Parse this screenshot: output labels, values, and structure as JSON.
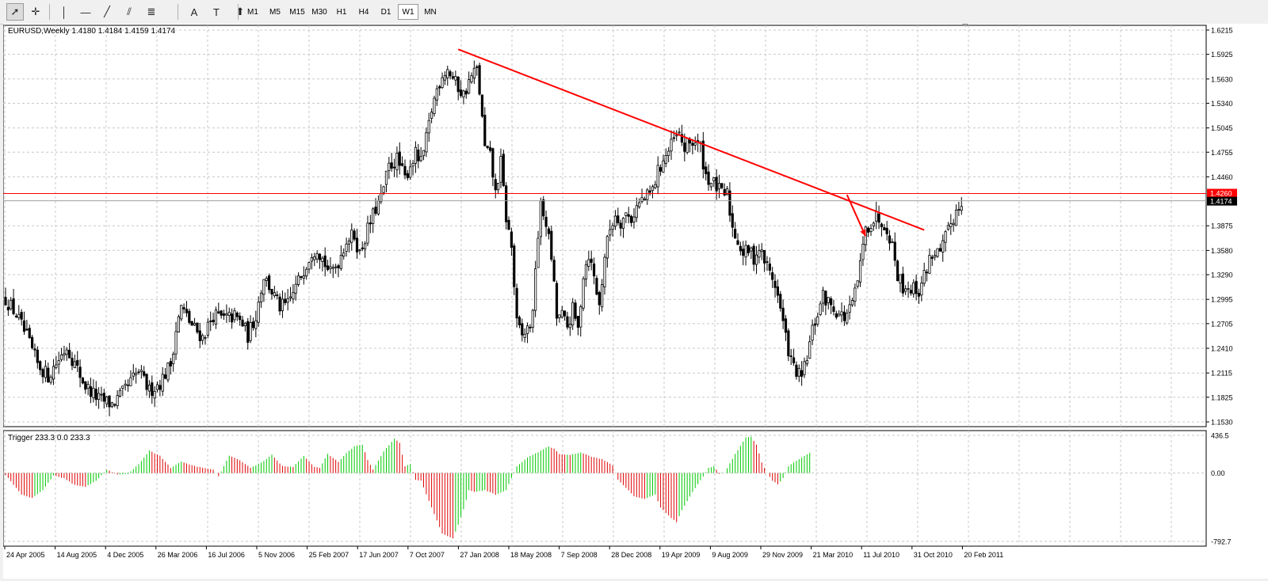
{
  "toolbar": {
    "tools": [
      {
        "name": "cursor-tool",
        "glyph": "➚"
      },
      {
        "name": "crosshair-tool",
        "glyph": "✛"
      },
      {
        "name": "vertical-line-tool",
        "glyph": "│"
      },
      {
        "name": "horizontal-line-tool",
        "glyph": "—"
      },
      {
        "name": "trendline-tool",
        "glyph": "╱"
      },
      {
        "name": "equidistant-channel-tool",
        "glyph": "⫽"
      },
      {
        "name": "fibonacci-tool",
        "glyph": "≣"
      },
      {
        "name": "text-tool",
        "glyph": "A"
      },
      {
        "name": "text-label-tool",
        "glyph": "T"
      },
      {
        "name": "arrows-tool",
        "glyph": "⬆"
      }
    ],
    "timeframes": [
      "M1",
      "M5",
      "M15",
      "M30",
      "H1",
      "H4",
      "D1",
      "W1",
      "MN"
    ],
    "active_timeframe": "W1"
  },
  "chart_data": {
    "type": "candlestick",
    "symbol_header": "EURUSD,Weekly  1.4180 1.4184 1.4159 1.4174",
    "price_axis": {
      "ylim": [
        1.153,
        1.6215
      ],
      "ticks": [
        "1.6215",
        "1.5925",
        "1.5630",
        "1.5340",
        "1.5045",
        "1.4755",
        "1.4460",
        "1.3875",
        "1.3580",
        "1.3290",
        "1.2995",
        "1.2705",
        "1.2410",
        "1.2115",
        "1.1825",
        "1.1530"
      ],
      "current_price_label": "1.4174",
      "current_price": 1.4174,
      "level_label": "1.4260",
      "level_price": 1.426,
      "level_color": "#ff0000"
    },
    "grid": true,
    "x_labels": [
      "24 Apr 2005",
      "14 Aug 2005",
      "4 Dec 2005",
      "26 Mar 2006",
      "16 Jul 2006",
      "5 Nov 2006",
      "25 Feb 2007",
      "17 Jun 2007",
      "7 Oct 2007",
      "27 Jan 2008",
      "18 May 2008",
      "7 Sep 2008",
      "28 Dec 2008",
      "19 Apr 2009",
      "9 Aug 2009",
      "29 Nov 2009",
      "21 Mar 2010",
      "11 Jul 2010",
      "31 Oct 2010",
      "20 Feb 2011"
    ],
    "close_path": [
      [
        0,
        1.3
      ],
      [
        4,
        1.282
      ],
      [
        8,
        1.254
      ],
      [
        12,
        1.222
      ],
      [
        16,
        1.208
      ],
      [
        20,
        1.228
      ],
      [
        23,
        1.243
      ],
      [
        26,
        1.222
      ],
      [
        30,
        1.196
      ],
      [
        35,
        1.18
      ],
      [
        40,
        1.174
      ],
      [
        44,
        1.187
      ],
      [
        48,
        1.205
      ],
      [
        50,
        1.213
      ],
      [
        54,
        1.19
      ],
      [
        58,
        1.2
      ],
      [
        62,
        1.222
      ],
      [
        64,
        1.263
      ],
      [
        66,
        1.29
      ],
      [
        70,
        1.268
      ],
      [
        74,
        1.254
      ],
      [
        78,
        1.281
      ],
      [
        82,
        1.276
      ],
      [
        86,
        1.279
      ],
      [
        89,
        1.27
      ],
      [
        91,
        1.256
      ],
      [
        94,
        1.281
      ],
      [
        97,
        1.328
      ],
      [
        100,
        1.309
      ],
      [
        103,
        1.29
      ],
      [
        106,
        1.293
      ],
      [
        109,
        1.314
      ],
      [
        112,
        1.336
      ],
      [
        115,
        1.357
      ],
      [
        117,
        1.362
      ],
      [
        119,
        1.348
      ],
      [
        122,
        1.33
      ],
      [
        125,
        1.345
      ],
      [
        128,
        1.371
      ],
      [
        131,
        1.376
      ],
      [
        133,
        1.354
      ],
      [
        136,
        1.383
      ],
      [
        139,
        1.408
      ],
      [
        141,
        1.42
      ],
      [
        144,
        1.458
      ],
      [
        147,
        1.467
      ],
      [
        150,
        1.444
      ],
      [
        152,
        1.461
      ],
      [
        154,
        1.473
      ],
      [
        156,
        1.462
      ],
      [
        158,
        1.49
      ],
      [
        160,
        1.526
      ],
      [
        162,
        1.551
      ],
      [
        164,
        1.569
      ],
      [
        166,
        1.575
      ],
      [
        169,
        1.558
      ],
      [
        172,
        1.544
      ],
      [
        175,
        1.566
      ],
      [
        177,
        1.574
      ],
      [
        178,
        1.548
      ],
      [
        180,
        1.48
      ],
      [
        182,
        1.47
      ],
      [
        184,
        1.426
      ],
      [
        186,
        1.463
      ],
      [
        188,
        1.397
      ],
      [
        190,
        1.362
      ],
      [
        192,
        1.27
      ],
      [
        194,
        1.255
      ],
      [
        196,
        1.264
      ],
      [
        198,
        1.278
      ],
      [
        199,
        1.341
      ],
      [
        201,
        1.41
      ],
      [
        203,
        1.392
      ],
      [
        205,
        1.35
      ],
      [
        207,
        1.278
      ],
      [
        209,
        1.28
      ],
      [
        211,
        1.266
      ],
      [
        213,
        1.287
      ],
      [
        215,
        1.263
      ],
      [
        217,
        1.33
      ],
      [
        219,
        1.354
      ],
      [
        221,
        1.326
      ],
      [
        223,
        1.291
      ],
      [
        225,
        1.352
      ],
      [
        227,
        1.384
      ],
      [
        229,
        1.401
      ],
      [
        231,
        1.393
      ],
      [
        233,
        1.401
      ],
      [
        235,
        1.396
      ],
      [
        237,
        1.41
      ],
      [
        239,
        1.418
      ],
      [
        241,
        1.422
      ],
      [
        243,
        1.43
      ],
      [
        245,
        1.452
      ],
      [
        247,
        1.467
      ],
      [
        249,
        1.476
      ],
      [
        251,
        1.49
      ],
      [
        253,
        1.495
      ],
      [
        255,
        1.48
      ],
      [
        257,
        1.487
      ],
      [
        259,
        1.488
      ],
      [
        261,
        1.48
      ],
      [
        263,
        1.448
      ],
      [
        265,
        1.44
      ],
      [
        267,
        1.434
      ],
      [
        269,
        1.425
      ],
      [
        271,
        1.425
      ],
      [
        273,
        1.385
      ],
      [
        275,
        1.37
      ],
      [
        277,
        1.354
      ],
      [
        279,
        1.358
      ],
      [
        281,
        1.35
      ],
      [
        283,
        1.36
      ],
      [
        285,
        1.346
      ],
      [
        287,
        1.332
      ],
      [
        289,
        1.318
      ],
      [
        291,
        1.288
      ],
      [
        293,
        1.254
      ],
      [
        295,
        1.225
      ],
      [
        297,
        1.212
      ],
      [
        299,
        1.205
      ],
      [
        301,
        1.23
      ],
      [
        303,
        1.262
      ],
      [
        305,
        1.283
      ],
      [
        307,
        1.303
      ],
      [
        309,
        1.296
      ],
      [
        311,
        1.29
      ],
      [
        313,
        1.282
      ],
      [
        315,
        1.278
      ],
      [
        317,
        1.286
      ],
      [
        319,
        1.305
      ],
      [
        321,
        1.34
      ],
      [
        323,
        1.383
      ],
      [
        325,
        1.392
      ],
      [
        327,
        1.398
      ],
      [
        329,
        1.394
      ],
      [
        331,
        1.386
      ],
      [
        333,
        1.364
      ],
      [
        335,
        1.33
      ],
      [
        337,
        1.315
      ],
      [
        339,
        1.315
      ],
      [
        341,
        1.312
      ],
      [
        343,
        1.31
      ],
      [
        345,
        1.328
      ],
      [
        347,
        1.348
      ],
      [
        349,
        1.357
      ],
      [
        351,
        1.352
      ],
      [
        353,
        1.372
      ],
      [
        355,
        1.39
      ],
      [
        357,
        1.405
      ],
      [
        359,
        1.417
      ]
    ],
    "trendline": {
      "from": {
        "bar": 170,
        "price": 1.5985
      },
      "to": {
        "bar": 345,
        "price": 1.3825
      },
      "color": "#ff0000"
    },
    "arrow": {
      "from": {
        "bar": 316,
        "price": 1.4245
      },
      "to": {
        "bar": 323,
        "price": 1.375
      },
      "color": "#ff0000"
    },
    "indicator": {
      "header": "Trigger 233.3 0.0 233.3",
      "ylim": [
        -792.7,
        436.5
      ],
      "ticks": [
        "436.5",
        "0.00",
        "-792.7"
      ],
      "positive_color": "#00c800",
      "negative_color": "#e00000",
      "envelope": [
        [
          0,
          -20
        ],
        [
          6,
          -250
        ],
        [
          10,
          -290
        ],
        [
          14,
          -200
        ],
        [
          18,
          -30
        ],
        [
          22,
          -60
        ],
        [
          26,
          -140
        ],
        [
          30,
          -160
        ],
        [
          34,
          -90
        ],
        [
          38,
          40
        ],
        [
          42,
          -20
        ],
        [
          46,
          -10
        ],
        [
          50,
          100
        ],
        [
          54,
          260
        ],
        [
          58,
          200
        ],
        [
          62,
          60
        ],
        [
          66,
          130
        ],
        [
          70,
          90
        ],
        [
          74,
          60
        ],
        [
          78,
          40
        ],
        [
          80,
          -40
        ],
        [
          84,
          200
        ],
        [
          88,
          150
        ],
        [
          92,
          60
        ],
        [
          96,
          120
        ],
        [
          100,
          210
        ],
        [
          104,
          80
        ],
        [
          108,
          70
        ],
        [
          112,
          200
        ],
        [
          116,
          70
        ],
        [
          118,
          60
        ],
        [
          121,
          220
        ],
        [
          125,
          130
        ],
        [
          128,
          230
        ],
        [
          131,
          310
        ],
        [
          134,
          330
        ],
        [
          136,
          150
        ],
        [
          138,
          40
        ],
        [
          142,
          250
        ],
        [
          146,
          400
        ],
        [
          148,
          350
        ],
        [
          150,
          80
        ],
        [
          152,
          100
        ],
        [
          154,
          -80
        ],
        [
          156,
          -90
        ],
        [
          160,
          -400
        ],
        [
          164,
          -700
        ],
        [
          168,
          -760
        ],
        [
          170,
          -600
        ],
        [
          172,
          -420
        ],
        [
          174,
          -200
        ],
        [
          176,
          -220
        ],
        [
          180,
          -200
        ],
        [
          184,
          -250
        ],
        [
          188,
          -200
        ],
        [
          192,
          80
        ],
        [
          196,
          180
        ],
        [
          200,
          240
        ],
        [
          204,
          310
        ],
        [
          206,
          280
        ],
        [
          208,
          220
        ],
        [
          212,
          210
        ],
        [
          216,
          240
        ],
        [
          220,
          190
        ],
        [
          224,
          160
        ],
        [
          228,
          90
        ],
        [
          230,
          -80
        ],
        [
          234,
          -200
        ],
        [
          236,
          -270
        ],
        [
          240,
          -300
        ],
        [
          244,
          -250
        ],
        [
          246,
          -400
        ],
        [
          250,
          -520
        ],
        [
          252,
          -570
        ],
        [
          254,
          -430
        ],
        [
          258,
          -220
        ],
        [
          262,
          -40
        ],
        [
          264,
          60
        ],
        [
          266,
          80
        ],
        [
          268,
          -10
        ],
        [
          270,
          0
        ],
        [
          274,
          220
        ],
        [
          278,
          410
        ],
        [
          280,
          420
        ],
        [
          282,
          330
        ],
        [
          284,
          120
        ],
        [
          286,
          0
        ],
        [
          288,
          -90
        ],
        [
          290,
          -130
        ],
        [
          292,
          -60
        ],
        [
          294,
          80
        ],
        [
          298,
          160
        ],
        [
          300,
          200
        ],
        [
          302,
          230
        ]
      ]
    }
  }
}
